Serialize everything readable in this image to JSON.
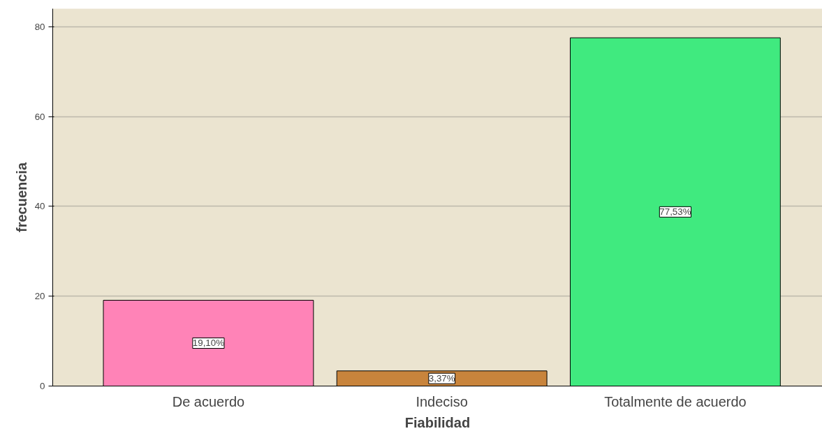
{
  "chart_data": {
    "type": "bar",
    "xlabel": "Fiabilidad",
    "ylabel": "frecuencia",
    "categories": [
      "De acuerdo",
      "Indeciso",
      "Totalmente de acuerdo"
    ],
    "values": [
      19.1,
      3.37,
      77.53
    ],
    "colors": [
      "#ff83b7",
      "#c8843c",
      "#40ea7f"
    ],
    "value_labels": [
      "19,10%",
      "3,37%",
      "77,53%"
    ],
    "ylim": [
      0,
      84
    ],
    "yticks": [
      0,
      20,
      40,
      60,
      80
    ],
    "grid": "y"
  }
}
